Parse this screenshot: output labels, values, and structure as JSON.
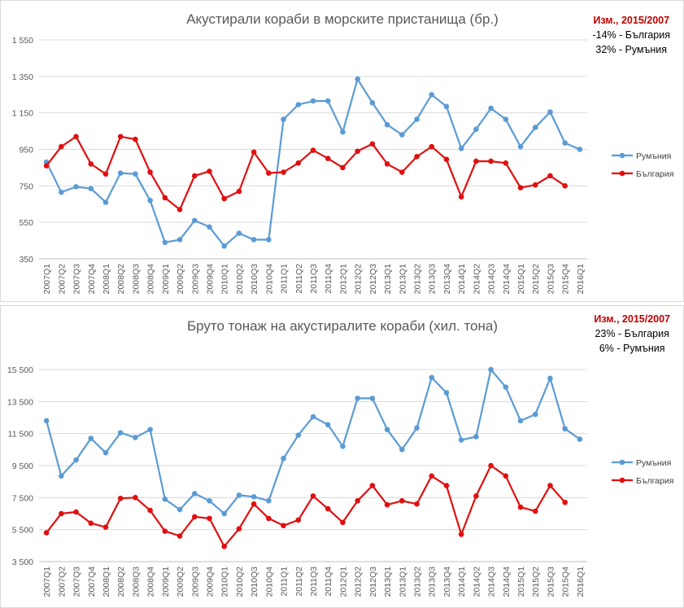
{
  "colors": {
    "romania": "#5b9bd5",
    "bulgaria": "#e01010",
    "grid": "#d9d9d9",
    "note_title": "#c00000"
  },
  "chart_data": [
    {
      "type": "line",
      "title": "Акустирали кораби в морските пристанища (бр.)",
      "x": [
        "2007Q1",
        "2007Q2",
        "2007Q3",
        "2007Q4",
        "2008Q1",
        "2008Q2",
        "2008Q3",
        "2008Q4",
        "2009Q1",
        "2009Q2",
        "2009Q3",
        "2009Q4",
        "2010Q1",
        "2010Q2",
        "2010Q3",
        "2010Q4",
        "2011Q1",
        "2011Q2",
        "2011Q3",
        "2011Q4",
        "2012Q1",
        "2012Q2",
        "2012Q3",
        "2013Q1",
        "2013Q1",
        "2013Q2",
        "2013Q3",
        "2013Q4",
        "2014Q1",
        "2014Q2",
        "2014Q3",
        "2014Q4",
        "2015Q1",
        "2015Q2",
        "2015Q3",
        "2015Q4",
        "2016Q1"
      ],
      "yticks": [
        350,
        550,
        750,
        950,
        1150,
        1350,
        1550
      ],
      "ytick_labels": [
        "350",
        "550",
        "750",
        "950",
        "1 150",
        "1 350",
        "1 550"
      ],
      "ylim": [
        350,
        1550
      ],
      "legend_position": "right",
      "series": [
        {
          "name": "Румъния",
          "color": "#5b9bd5",
          "values": [
            880,
            715,
            745,
            735,
            660,
            820,
            815,
            670,
            440,
            455,
            560,
            525,
            420,
            490,
            455,
            455,
            1115,
            1195,
            1215,
            1215,
            1045,
            1335,
            1205,
            1085,
            1030,
            1115,
            1250,
            1185,
            955,
            1060,
            1175,
            1115,
            965,
            1070,
            1155,
            985,
            950
          ]
        },
        {
          "name": "България",
          "color": "#e01010",
          "values": [
            860,
            965,
            1020,
            870,
            815,
            1020,
            1005,
            825,
            685,
            620,
            805,
            830,
            680,
            720,
            935,
            820,
            825,
            875,
            945,
            900,
            850,
            940,
            980,
            870,
            825,
            910,
            965,
            895,
            690,
            885,
            885,
            875,
            740,
            755,
            805,
            750,
            null
          ]
        }
      ],
      "note": {
        "title": "Изм., 2015/2007",
        "line1": "-14% - България",
        "line2": "32% - Румъния"
      }
    },
    {
      "type": "line",
      "title": "Бруто тонаж на акустиралите кораби (хил. тона)",
      "x": [
        "2007Q1",
        "2007Q2",
        "2007Q3",
        "2007Q4",
        "2008Q1",
        "2008Q2",
        "2008Q3",
        "2008Q4",
        "2009Q1",
        "2009Q2",
        "2009Q3",
        "2009Q4",
        "2010Q1",
        "2010Q2",
        "2010Q3",
        "2010Q4",
        "2011Q1",
        "2011Q2",
        "2011Q3",
        "2011Q4",
        "2012Q1",
        "2012Q2",
        "2012Q3",
        "2013Q1",
        "2013Q1",
        "2013Q2",
        "2013Q3",
        "2013Q4",
        "2014Q1",
        "2014Q2",
        "2014Q3",
        "2014Q4",
        "2015Q1",
        "2015Q2",
        "2015Q3",
        "2015Q4",
        "2016Q1"
      ],
      "yticks": [
        3500,
        5500,
        7500,
        9500,
        11500,
        13500,
        15500
      ],
      "ytick_labels": [
        "3 500",
        "5 500",
        "7 500",
        "9 500",
        "11 500",
        "13 500",
        "15 500"
      ],
      "ylim": [
        3500,
        15500
      ],
      "legend_position": "right",
      "series": [
        {
          "name": "Румъния",
          "color": "#5b9bd5",
          "values": [
            12300,
            8850,
            9850,
            11200,
            10300,
            11550,
            11250,
            11750,
            7400,
            6750,
            7750,
            7300,
            6500,
            7650,
            7550,
            7300,
            9950,
            11400,
            12550,
            12050,
            10700,
            13700,
            13700,
            11750,
            10500,
            11850,
            15000,
            14050,
            11100,
            11300,
            15500,
            14400,
            12300,
            12700,
            14950,
            11800,
            11150
          ]
        },
        {
          "name": "България",
          "color": "#e01010",
          "values": [
            5300,
            6500,
            6600,
            5900,
            5650,
            7450,
            7500,
            6700,
            5400,
            5100,
            6300,
            6200,
            4450,
            5550,
            7100,
            6200,
            5750,
            6100,
            7600,
            6800,
            5950,
            7300,
            8250,
            7050,
            7300,
            7100,
            8850,
            8250,
            5200,
            7600,
            9500,
            8850,
            6900,
            6650,
            8250,
            7200,
            null
          ]
        }
      ],
      "note": {
        "title": "Изм., 2015/2007",
        "line1": "23% - България",
        "line2": "6% - Румъния"
      }
    }
  ]
}
